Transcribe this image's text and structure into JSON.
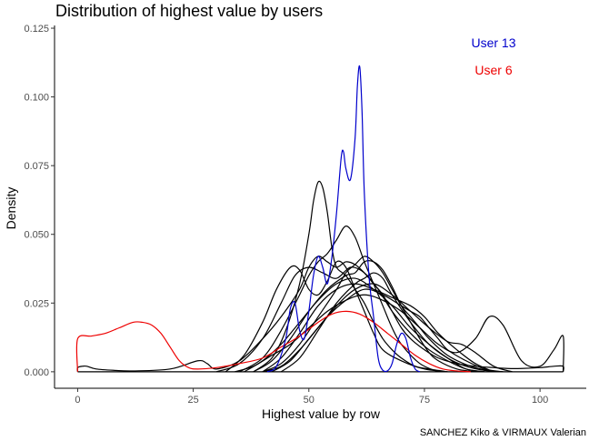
{
  "chart_data": {
    "type": "line",
    "title": "Distribution of highest value by users",
    "xlabel": "Highest value by row",
    "ylabel": "Density",
    "caption": "SANCHEZ Kiko & VIRMAUX Valerian",
    "xlim": [
      -5,
      110
    ],
    "ylim": [
      -0.006,
      0.126
    ],
    "x_ticks": [
      0,
      25,
      50,
      75,
      100
    ],
    "x_tick_labels": [
      "0",
      "25",
      "50",
      "75",
      "100"
    ],
    "y_ticks": [
      0.0,
      0.025,
      0.05,
      0.075,
      0.1,
      0.125
    ],
    "y_tick_labels": [
      "0.000",
      "0.025",
      "0.050",
      "0.075",
      "0.100",
      "0.125"
    ],
    "grid": false,
    "legend_position": "top-right",
    "annotations": [
      {
        "text": "User 13",
        "color": "#0000cc"
      },
      {
        "text": "User 6",
        "color": "#ee0000"
      }
    ],
    "series": [
      {
        "name": "User 13",
        "color": "#0000cc",
        "x": [
          41,
          43,
          45,
          46,
          47,
          48,
          49,
          50,
          51,
          52,
          53,
          54,
          55,
          56,
          57,
          57.5,
          58,
          59,
          60,
          60.5,
          61,
          61.5,
          62,
          63,
          64,
          65,
          66,
          67,
          68,
          69,
          70,
          71,
          72,
          73,
          74
        ],
        "y": [
          0,
          0.002,
          0.012,
          0.023,
          0.025,
          0.015,
          0.012,
          0.022,
          0.035,
          0.042,
          0.038,
          0.032,
          0.042,
          0.058,
          0.078,
          0.08,
          0.074,
          0.07,
          0.085,
          0.104,
          0.111,
          0.095,
          0.065,
          0.035,
          0.02,
          0.005,
          0.0005,
          0.0003,
          0.003,
          0.01,
          0.014,
          0.012,
          0.005,
          0.001,
          0
        ]
      },
      {
        "name": "User 6",
        "color": "#ee0000",
        "x": [
          0,
          0,
          3,
          6,
          9,
          12,
          14,
          16,
          18,
          20,
          22,
          24,
          26,
          30,
          35,
          40,
          44,
          48,
          52,
          55,
          58,
          61,
          64,
          67,
          70,
          73,
          76,
          79,
          82,
          85
        ],
        "y": [
          0,
          0.012,
          0.013,
          0.014,
          0.016,
          0.018,
          0.018,
          0.017,
          0.014,
          0.009,
          0.004,
          0.0015,
          0.001,
          0.0015,
          0.003,
          0.005,
          0.009,
          0.013,
          0.018,
          0.021,
          0.022,
          0.021,
          0.018,
          0.014,
          0.01,
          0.006,
          0.003,
          0.001,
          0.0003,
          0
        ]
      },
      {
        "name": "",
        "color": "#000000",
        "x": [
          0,
          0,
          1,
          2,
          4,
          8,
          12,
          20,
          26,
          28,
          30,
          35,
          40,
          44,
          48,
          50,
          52,
          54,
          56,
          58,
          60,
          62,
          64,
          66,
          68,
          70,
          72,
          75,
          78,
          82,
          86,
          90,
          93,
          96,
          100,
          103,
          105,
          105
        ],
        "y": [
          0,
          0.0015,
          0.002,
          0.002,
          0.001,
          0.0005,
          0.0003,
          0.001,
          0.004,
          0.003,
          0.001,
          0.004,
          0.012,
          0.02,
          0.03,
          0.038,
          0.042,
          0.04,
          0.038,
          0.04,
          0.039,
          0.036,
          0.032,
          0.028,
          0.022,
          0.016,
          0.012,
          0.008,
          0.005,
          0.003,
          0.002,
          0.0015,
          0.0012,
          0.0012,
          0.0015,
          0.002,
          0.002,
          0
        ]
      },
      {
        "name": "",
        "color": "#000000",
        "x": [
          38,
          42,
          45,
          48,
          50,
          51,
          52,
          53,
          54,
          55,
          56,
          58,
          60,
          62,
          64,
          66,
          68,
          70,
          73,
          76,
          80
        ],
        "y": [
          0,
          0.005,
          0.015,
          0.032,
          0.05,
          0.062,
          0.069,
          0.067,
          0.058,
          0.045,
          0.038,
          0.035,
          0.03,
          0.025,
          0.018,
          0.012,
          0.008,
          0.005,
          0.002,
          0.001,
          0
        ]
      },
      {
        "name": "",
        "color": "#000000",
        "x": [
          35,
          40,
          44,
          48,
          50,
          52,
          54,
          56,
          58,
          60,
          62,
          64,
          66,
          68,
          70,
          74,
          78
        ],
        "y": [
          0,
          0.005,
          0.015,
          0.028,
          0.035,
          0.04,
          0.043,
          0.048,
          0.053,
          0.049,
          0.04,
          0.032,
          0.024,
          0.016,
          0.01,
          0.003,
          0
        ]
      },
      {
        "name": "",
        "color": "#000000",
        "x": [
          32,
          36,
          40,
          43,
          46,
          48,
          50,
          52,
          54,
          56,
          58,
          60,
          62,
          64,
          66,
          70,
          75,
          80
        ],
        "y": [
          0,
          0.006,
          0.018,
          0.03,
          0.038,
          0.037,
          0.03,
          0.028,
          0.033,
          0.04,
          0.038,
          0.03,
          0.022,
          0.014,
          0.008,
          0.004,
          0.001,
          0
        ]
      },
      {
        "name": "",
        "color": "#000000",
        "x": [
          30,
          35,
          40,
          44,
          47,
          50,
          53,
          56,
          59,
          62,
          65,
          68,
          72,
          76,
          80,
          84,
          88
        ],
        "y": [
          0,
          0.003,
          0.012,
          0.025,
          0.035,
          0.038,
          0.036,
          0.034,
          0.038,
          0.036,
          0.03,
          0.022,
          0.014,
          0.008,
          0.004,
          0.001,
          0
        ]
      },
      {
        "name": "",
        "color": "#000000",
        "x": [
          38,
          42,
          46,
          50,
          54,
          58,
          60,
          62,
          64,
          66,
          68,
          70,
          72,
          74,
          76,
          78,
          82,
          86
        ],
        "y": [
          0,
          0.004,
          0.012,
          0.022,
          0.03,
          0.035,
          0.036,
          0.04,
          0.04,
          0.037,
          0.031,
          0.024,
          0.018,
          0.012,
          0.007,
          0.004,
          0.001,
          0
        ]
      },
      {
        "name": "",
        "color": "#000000",
        "x": [
          40,
          44,
          48,
          52,
          56,
          58,
          60,
          62,
          64,
          66,
          68,
          70,
          72,
          74,
          76,
          80,
          85,
          90
        ],
        "y": [
          0,
          0.003,
          0.01,
          0.02,
          0.03,
          0.036,
          0.039,
          0.042,
          0.04,
          0.036,
          0.03,
          0.024,
          0.02,
          0.016,
          0.012,
          0.006,
          0.002,
          0
        ]
      },
      {
        "name": "",
        "color": "#000000",
        "x": [
          42,
          46,
          50,
          54,
          58,
          62,
          66,
          70,
          72,
          74,
          76,
          78,
          80,
          84,
          88,
          92
        ],
        "y": [
          0,
          0.004,
          0.012,
          0.02,
          0.026,
          0.03,
          0.028,
          0.024,
          0.022,
          0.02,
          0.016,
          0.012,
          0.008,
          0.004,
          0.001,
          0
        ]
      },
      {
        "name": "",
        "color": "#000000",
        "x": [
          40,
          44,
          48,
          52,
          56,
          60,
          64,
          68,
          72,
          75,
          78,
          82,
          86,
          90
        ],
        "y": [
          0,
          0.005,
          0.014,
          0.024,
          0.03,
          0.032,
          0.03,
          0.027,
          0.024,
          0.02,
          0.014,
          0.008,
          0.003,
          0
        ]
      },
      {
        "name": "",
        "color": "#000000",
        "x": [
          36,
          40,
          44,
          48,
          52,
          56,
          60,
          64,
          68,
          72,
          76,
          80,
          84,
          88
        ],
        "y": [
          0,
          0.004,
          0.01,
          0.018,
          0.026,
          0.032,
          0.034,
          0.03,
          0.024,
          0.016,
          0.01,
          0.005,
          0.001,
          0
        ]
      },
      {
        "name": "",
        "color": "#000000",
        "x": [
          44,
          48,
          52,
          56,
          60,
          62,
          64,
          66,
          68,
          72,
          76,
          80,
          84,
          88,
          92
        ],
        "y": [
          0,
          0.005,
          0.015,
          0.025,
          0.032,
          0.034,
          0.036,
          0.034,
          0.028,
          0.018,
          0.01,
          0.005,
          0.002,
          0.0005,
          0
        ]
      },
      {
        "name": "",
        "color": "#000000",
        "x": [
          34,
          38,
          42,
          46,
          50,
          54,
          58,
          62,
          66,
          70,
          74,
          78,
          82,
          86,
          89,
          92,
          96,
          100,
          103,
          105,
          105
        ],
        "y": [
          0,
          0.002,
          0.006,
          0.01,
          0.016,
          0.022,
          0.026,
          0.028,
          0.026,
          0.022,
          0.016,
          0.01,
          0.007,
          0.012,
          0.02,
          0.017,
          0.004,
          0.002,
          0.008,
          0.013,
          0
        ]
      },
      {
        "name": "",
        "color": "#000000",
        "x": [
          40,
          44,
          48,
          52,
          56,
          60,
          64,
          68,
          72,
          76,
          80,
          83,
          86,
          90,
          94
        ],
        "y": [
          0,
          0.002,
          0.008,
          0.016,
          0.024,
          0.03,
          0.032,
          0.028,
          0.022,
          0.016,
          0.011,
          0.01,
          0.007,
          0.002,
          0
        ]
      },
      {
        "name": "",
        "color": "#000000",
        "x": [
          0,
          105
        ],
        "y": [
          0,
          0
        ]
      }
    ]
  }
}
